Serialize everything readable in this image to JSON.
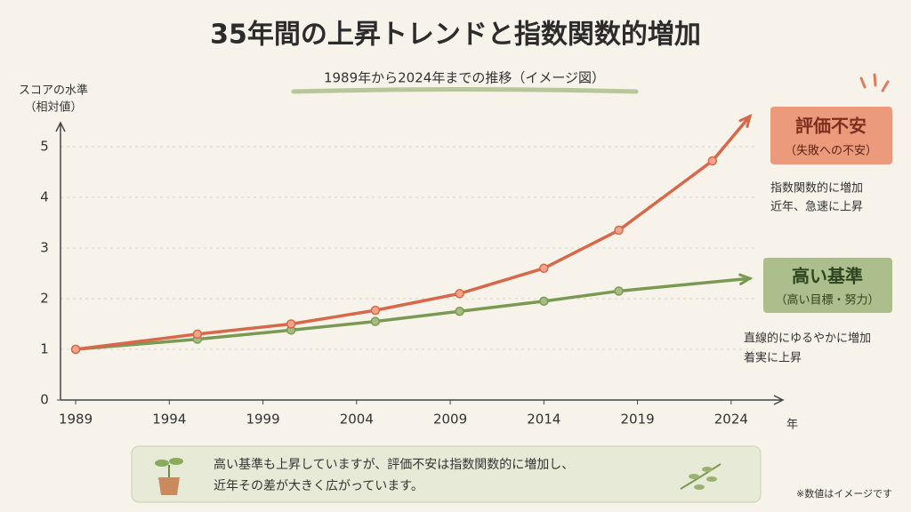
{
  "chart_data": {
    "type": "line",
    "title": "35年間の上昇トレンドと指数関数的増加",
    "subtitle": "1989年から2024年までの推移（イメージ図）",
    "ylabel": [
      "スコアの水準",
      "（相対値）"
    ],
    "xlabel": "年",
    "xlim": [
      1988,
      2027
    ],
    "xticks": [
      1989,
      1994,
      1999,
      2004,
      2009,
      2014,
      2019,
      2024
    ],
    "ylim": [
      0,
      5.5
    ],
    "yticks": [
      0,
      1,
      2,
      3,
      4,
      5
    ],
    "grid": true,
    "series": [
      {
        "name": "評価不安",
        "color": "#d8684a",
        "x": [
          1989,
          1995.5,
          2000.5,
          2005,
          2009.5,
          2014,
          2018,
          2023,
          2025
        ],
        "values": [
          1.0,
          1.3,
          1.5,
          1.77,
          2.1,
          2.6,
          3.35,
          4.72,
          5.6
        ]
      },
      {
        "name": "高い基準",
        "color": "#7a9a52",
        "x": [
          1989,
          1995.5,
          2000.5,
          2005,
          2009.5,
          2014,
          2018,
          2025
        ],
        "values": [
          1.0,
          1.2,
          1.38,
          1.55,
          1.75,
          1.95,
          2.15,
          2.4
        ]
      }
    ],
    "callouts": [
      {
        "subtitle": "（失敗への不安）",
        "notes": [
          "指数関数的に増加",
          "近年、急速に上昇"
        ]
      },
      {
        "subtitle": "（高い目標・努力）",
        "notes": [
          "直線的にゆるやかに増加",
          "着実に上昇"
        ]
      }
    ],
    "message": [
      "高い基準も上昇していますが、評価不安は指数関数的に増加し、",
      "近年その差が大きく広がっています。"
    ],
    "footnote": "※数値はイメージです"
  }
}
